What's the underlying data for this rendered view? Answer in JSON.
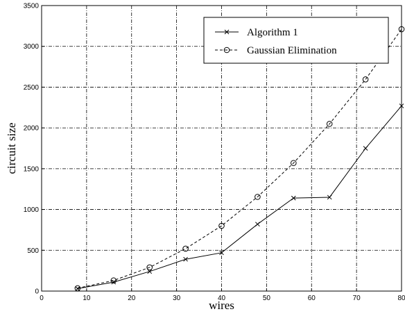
{
  "chart_data": {
    "type": "line",
    "xlabel": "wires",
    "ylabel": "circuit size",
    "xlim": [
      0,
      80
    ],
    "ylim": [
      0,
      3500
    ],
    "xticks": [
      "0",
      "10",
      "20",
      "30",
      "40",
      "50",
      "60",
      "70",
      "80"
    ],
    "yticks": [
      "0",
      "500",
      "1000",
      "1500",
      "2000",
      "2500",
      "3000",
      "3500"
    ],
    "grid": true,
    "legend_position": "top-right",
    "series": [
      {
        "name": "Algorithm 1",
        "marker": "x",
        "line": "solid",
        "x": [
          8,
          16,
          24,
          32,
          40,
          48,
          56,
          64,
          72,
          80
        ],
        "y": [
          30,
          110,
          240,
          390,
          470,
          820,
          1140,
          1150,
          1750,
          2270
        ]
      },
      {
        "name": "Gaussian Elimination",
        "marker": "o",
        "line": "dashed",
        "x": [
          8,
          16,
          24,
          32,
          40,
          48,
          56,
          64,
          72,
          80
        ],
        "y": [
          35,
          130,
          290,
          520,
          800,
          1155,
          1570,
          2050,
          2595,
          3210
        ]
      }
    ]
  }
}
